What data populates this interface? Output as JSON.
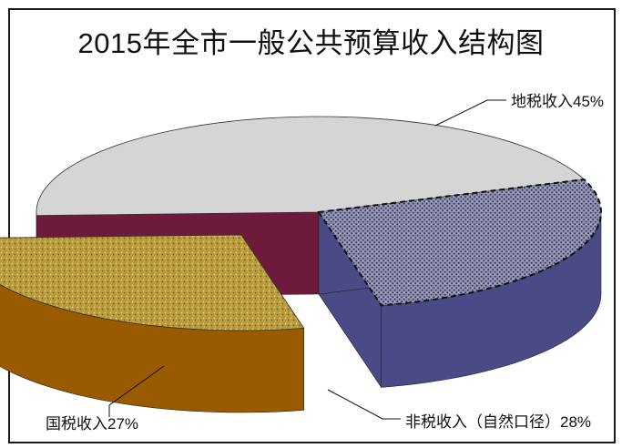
{
  "chart_data": {
    "type": "pie",
    "title": "2015年全市一般公共预算收入结构图",
    "categories": [
      "地税收入",
      "非税收入（自然口径）",
      "国税收入"
    ],
    "values": [
      45,
      28,
      27
    ],
    "data_labels": [
      "地税收入45%",
      "非税收入（自然口径）28%",
      "国税收入27%"
    ],
    "colors": [
      "#d5d5d5",
      "#b89a3a",
      "#8f8fb0"
    ],
    "side_colors": [
      "#6e1a3a",
      "#9a5a00",
      "#4a4a86"
    ],
    "exploded": [
      "非税收入（自然口径）"
    ],
    "legend": "none"
  }
}
